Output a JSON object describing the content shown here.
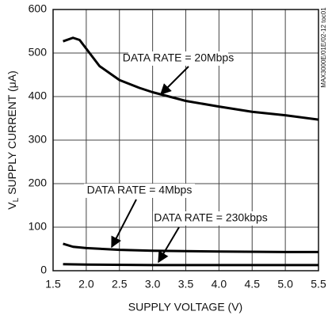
{
  "chart_data": {
    "type": "line",
    "x_label": "SUPPLY VOLTAGE (V)",
    "y_label": {
      "main": "V",
      "sub": "L",
      "rest": " SUPPLY CURRENT (μA)"
    },
    "note": "MAX3000E/01E/02-12 toc01",
    "xlim": [
      1.5,
      5.5
    ],
    "xticks": [
      1.5,
      {
        "value": 2,
        "label": "2.0"
      },
      2.5,
      {
        "value": 3,
        "label": "3.0"
      },
      3.5,
      {
        "value": 4,
        "label": "4.0"
      },
      4.5,
      {
        "value": 5,
        "label": "5.0"
      },
      5.5
    ],
    "ylim": [
      0,
      600
    ],
    "yticks": [
      0,
      100,
      200,
      300,
      400,
      500,
      600
    ],
    "grid": true,
    "series": [
      {
        "name": "DATA RATE = 20Mbps",
        "color": "#000000",
        "x": [
          1.65,
          1.8,
          1.9,
          2.0,
          2.2,
          2.5,
          2.8,
          3.0,
          3.5,
          4.0,
          4.5,
          5.0,
          5.5
        ],
        "values": [
          527,
          535,
          530,
          510,
          470,
          438,
          420,
          410,
          390,
          377,
          365,
          357,
          347
        ]
      },
      {
        "name": "DATA RATE = 4Mbps",
        "color": "#000000",
        "x": [
          1.65,
          1.8,
          2.0,
          2.5,
          3.0,
          4.0,
          5.0,
          5.5
        ],
        "values": [
          62,
          55,
          52,
          48,
          46,
          44,
          43,
          43
        ]
      },
      {
        "name": "DATA RATE = 230kbps",
        "color": "#000000",
        "x": [
          1.65,
          2.0,
          3.0,
          4.0,
          5.5
        ],
        "values": [
          15,
          14,
          13,
          13,
          13
        ]
      }
    ]
  }
}
